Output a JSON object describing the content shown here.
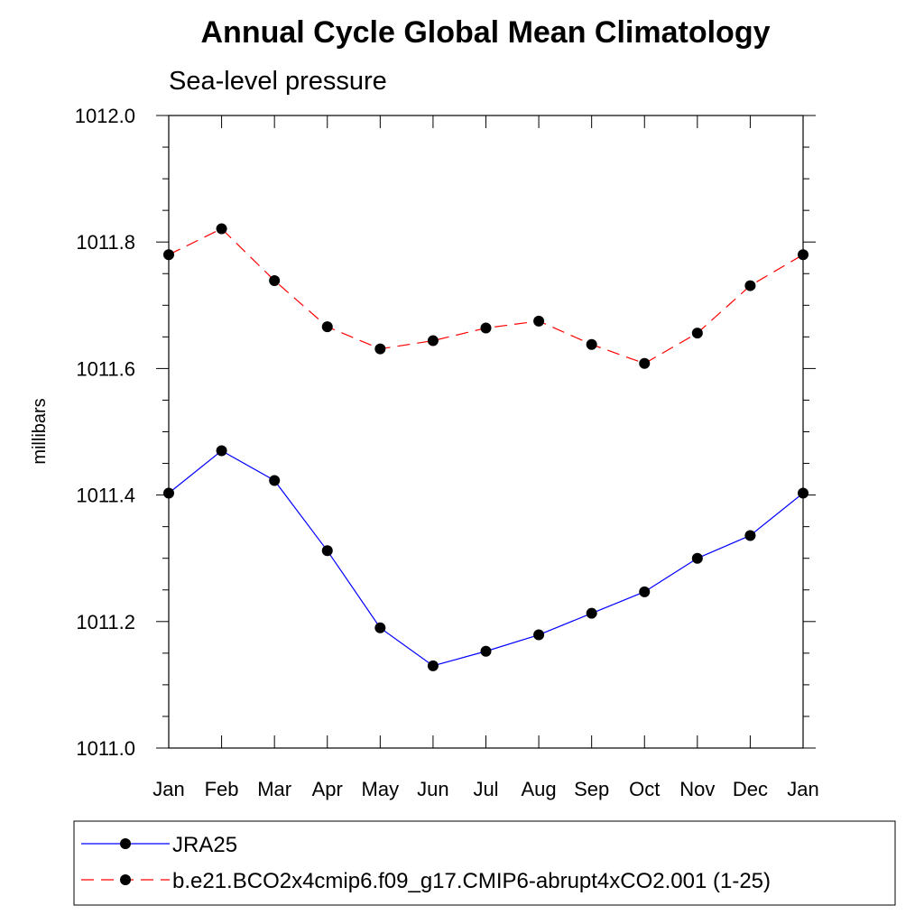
{
  "chart_data": {
    "type": "line",
    "title": "Annual Cycle Global Mean Climatology",
    "subtitle": "Sea-level pressure",
    "xlabel": "",
    "ylabel": "millibars",
    "categories": [
      "Jan",
      "Feb",
      "Mar",
      "Apr",
      "May",
      "Jun",
      "Jul",
      "Aug",
      "Sep",
      "Oct",
      "Nov",
      "Dec",
      "Jan"
    ],
    "ylim": [
      1011.0,
      1012.0
    ],
    "yticks": [
      1011.0,
      1011.2,
      1011.4,
      1011.6,
      1011.8,
      1012.0
    ],
    "ytick_labels": [
      "1011.0",
      "1011.2",
      "1011.4",
      "1011.6",
      "1011.8",
      "1012.0"
    ],
    "y_minor_step": 0.05,
    "grid": false,
    "legend_position": "bottom",
    "series": [
      {
        "name": "JRA25",
        "color": "#0000ff",
        "dash": "solid",
        "marker": "filled-circle",
        "values": [
          1011.403,
          1011.47,
          1011.423,
          1011.312,
          1011.19,
          1011.13,
          1011.153,
          1011.179,
          1011.213,
          1011.247,
          1011.3,
          1011.336,
          1011.403
        ]
      },
      {
        "name": "b.e21.BCO2x4cmip6.f09_g17.CMIP6-abrupt4xCO2.001 (1-25)",
        "color": "#ff0000",
        "dash": "dashed",
        "marker": "filled-circle",
        "values": [
          1011.78,
          1011.821,
          1011.739,
          1011.666,
          1011.631,
          1011.644,
          1011.664,
          1011.675,
          1011.638,
          1011.608,
          1011.656,
          1011.731,
          1011.78
        ]
      }
    ]
  }
}
